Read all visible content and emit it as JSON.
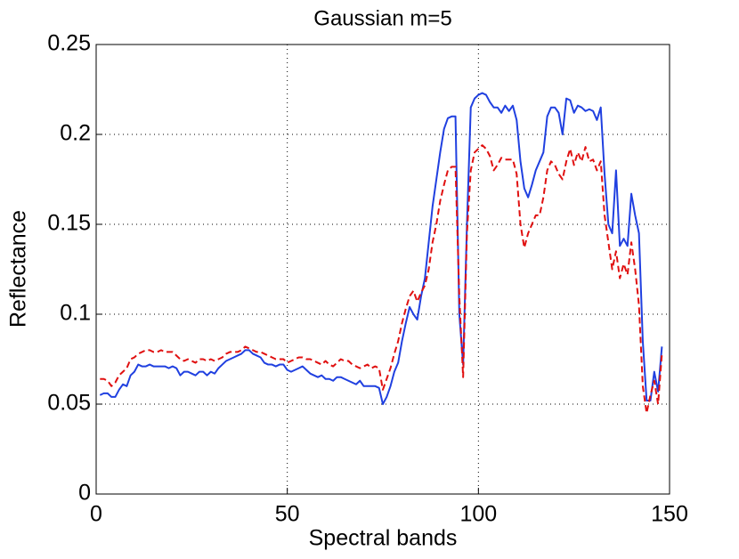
{
  "chart_data": {
    "type": "line",
    "title": "Gaussian m=5",
    "xlabel": "Spectral bands",
    "ylabel": "Reflectance",
    "x": [
      1,
      2,
      3,
      4,
      5,
      6,
      7,
      8,
      9,
      10,
      11,
      12,
      13,
      14,
      15,
      16,
      17,
      18,
      19,
      20,
      21,
      22,
      23,
      24,
      25,
      26,
      27,
      28,
      29,
      30,
      31,
      32,
      33,
      34,
      35,
      36,
      37,
      38,
      39,
      40,
      41,
      42,
      43,
      44,
      45,
      46,
      47,
      48,
      49,
      50,
      51,
      52,
      53,
      54,
      55,
      56,
      57,
      58,
      59,
      60,
      61,
      62,
      63,
      64,
      65,
      66,
      67,
      68,
      69,
      70,
      71,
      72,
      73,
      74,
      75,
      76,
      77,
      78,
      79,
      80,
      81,
      82,
      83,
      84,
      85,
      86,
      87,
      88,
      89,
      90,
      91,
      92,
      93,
      94,
      95,
      96,
      97,
      98,
      99,
      100,
      101,
      102,
      103,
      104,
      105,
      106,
      107,
      108,
      109,
      110,
      111,
      112,
      113,
      114,
      115,
      116,
      117,
      118,
      119,
      120,
      121,
      122,
      123,
      124,
      125,
      126,
      127,
      128,
      129,
      130,
      131,
      132,
      133,
      134,
      135,
      136,
      137,
      138,
      139,
      140,
      141,
      142,
      143,
      144,
      145,
      146,
      147,
      148
    ],
    "series": [
      {
        "color": "#2040e0",
        "linestyle": "solid",
        "values": [
          0.055,
          0.056,
          0.056,
          0.054,
          0.054,
          0.058,
          0.061,
          0.06,
          0.066,
          0.068,
          0.072,
          0.071,
          0.071,
          0.072,
          0.071,
          0.071,
          0.071,
          0.071,
          0.07,
          0.071,
          0.07,
          0.066,
          0.068,
          0.068,
          0.067,
          0.066,
          0.068,
          0.068,
          0.066,
          0.068,
          0.067,
          0.07,
          0.072,
          0.074,
          0.075,
          0.076,
          0.077,
          0.078,
          0.08,
          0.08,
          0.078,
          0.077,
          0.076,
          0.073,
          0.072,
          0.072,
          0.071,
          0.072,
          0.072,
          0.069,
          0.068,
          0.069,
          0.07,
          0.071,
          0.069,
          0.067,
          0.066,
          0.065,
          0.066,
          0.064,
          0.064,
          0.063,
          0.065,
          0.065,
          0.064,
          0.063,
          0.062,
          0.061,
          0.063,
          0.06,
          0.06,
          0.06,
          0.06,
          0.059,
          0.05,
          0.054,
          0.06,
          0.068,
          0.073,
          0.085,
          0.095,
          0.104,
          0.1,
          0.097,
          0.11,
          0.12,
          0.14,
          0.16,
          0.175,
          0.19,
          0.203,
          0.209,
          0.21,
          0.21,
          0.1,
          0.072,
          0.15,
          0.215,
          0.22,
          0.222,
          0.223,
          0.222,
          0.218,
          0.215,
          0.215,
          0.212,
          0.216,
          0.213,
          0.216,
          0.208,
          0.185,
          0.17,
          0.165,
          0.172,
          0.18,
          0.185,
          0.19,
          0.21,
          0.215,
          0.215,
          0.212,
          0.2,
          0.22,
          0.219,
          0.212,
          0.216,
          0.215,
          0.213,
          0.214,
          0.213,
          0.208,
          0.215,
          0.178,
          0.15,
          0.145,
          0.18,
          0.138,
          0.142,
          0.138,
          0.167,
          0.155,
          0.145,
          0.085,
          0.052,
          0.052,
          0.068,
          0.057,
          0.082
        ]
      },
      {
        "color": "#e01010",
        "linestyle": "dashed",
        "values": [
          0.064,
          0.064,
          0.063,
          0.06,
          0.062,
          0.066,
          0.068,
          0.07,
          0.075,
          0.076,
          0.078,
          0.079,
          0.08,
          0.08,
          0.079,
          0.079,
          0.08,
          0.079,
          0.079,
          0.079,
          0.077,
          0.075,
          0.074,
          0.075,
          0.074,
          0.073,
          0.075,
          0.075,
          0.074,
          0.075,
          0.074,
          0.075,
          0.076,
          0.078,
          0.079,
          0.079,
          0.079,
          0.08,
          0.082,
          0.081,
          0.08,
          0.079,
          0.079,
          0.078,
          0.077,
          0.076,
          0.075,
          0.075,
          0.075,
          0.073,
          0.074,
          0.075,
          0.076,
          0.076,
          0.075,
          0.075,
          0.074,
          0.073,
          0.072,
          0.074,
          0.072,
          0.071,
          0.073,
          0.075,
          0.074,
          0.074,
          0.072,
          0.071,
          0.07,
          0.071,
          0.072,
          0.07,
          0.071,
          0.07,
          0.058,
          0.064,
          0.07,
          0.078,
          0.085,
          0.095,
          0.103,
          0.11,
          0.113,
          0.107,
          0.112,
          0.116,
          0.125,
          0.14,
          0.15,
          0.163,
          0.172,
          0.18,
          0.182,
          0.182,
          0.11,
          0.065,
          0.145,
          0.18,
          0.19,
          0.192,
          0.194,
          0.192,
          0.188,
          0.18,
          0.183,
          0.187,
          0.186,
          0.186,
          0.186,
          0.178,
          0.15,
          0.137,
          0.145,
          0.15,
          0.155,
          0.155,
          0.165,
          0.18,
          0.185,
          0.183,
          0.178,
          0.175,
          0.185,
          0.192,
          0.183,
          0.19,
          0.185,
          0.193,
          0.185,
          0.186,
          0.18,
          0.185,
          0.155,
          0.14,
          0.125,
          0.135,
          0.12,
          0.128,
          0.122,
          0.14,
          0.125,
          0.105,
          0.06,
          0.045,
          0.055,
          0.063,
          0.05,
          0.078
        ]
      }
    ],
    "xlim": [
      0,
      150
    ],
    "xticks": [
      0,
      50,
      100,
      150
    ],
    "ylim": [
      0,
      0.25
    ],
    "yticks": [
      0,
      0.05,
      0.1,
      0.15,
      0.2,
      0.25
    ],
    "grid": true
  }
}
